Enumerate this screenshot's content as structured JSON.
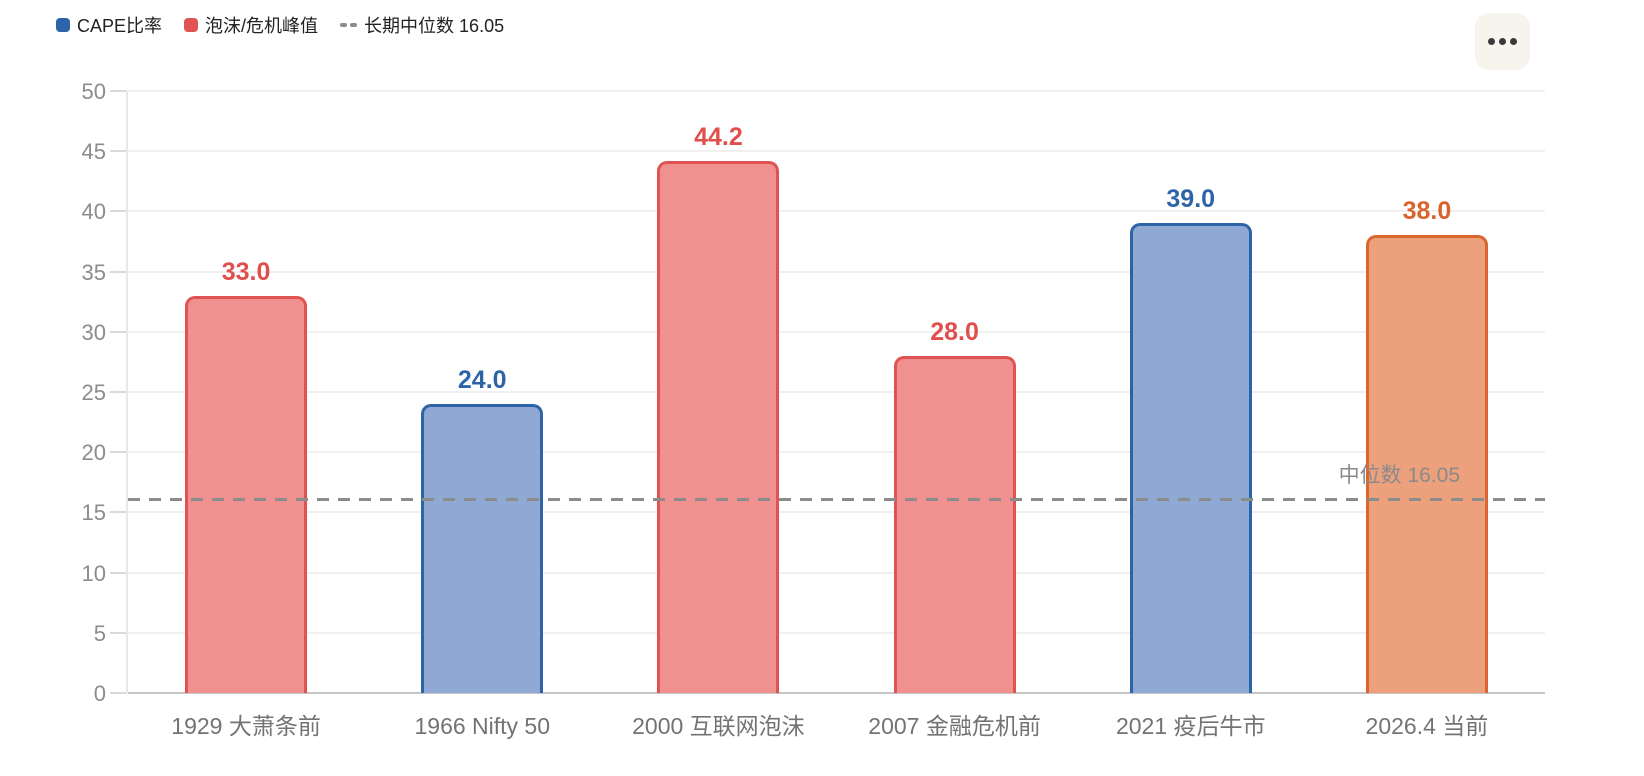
{
  "legend": {
    "items": [
      {
        "label": "CAPE比率",
        "swatch": "square",
        "color": "#2d64a7"
      },
      {
        "label": "泡沫/危机峰值",
        "swatch": "square",
        "color": "#e05353"
      },
      {
        "label": "长期中位数 16.05",
        "swatch": "dashed-line",
        "color": "#8c8c8c"
      }
    ]
  },
  "more_button": {
    "icon": "ellipsis-icon"
  },
  "chart_data": {
    "type": "bar",
    "categories": [
      "1929 大萧条前",
      "1966 Nifty 50",
      "2000 互联网泡沫",
      "2007 金融危机前",
      "2021 疫后牛市",
      "2026.4 当前"
    ],
    "values": [
      33.0,
      24.0,
      44.2,
      28.0,
      39.0,
      38.0
    ],
    "value_labels": [
      "33.0",
      "24.0",
      "44.2",
      "28.0",
      "39.0",
      "38.0"
    ],
    "bar_series": [
      "泡沫/危机峰值",
      "CAPE比率",
      "泡沫/危机峰值",
      "泡沫/危机峰值",
      "CAPE比率",
      "2026.4 当前"
    ],
    "bar_style_keys": [
      "bubble",
      "cape",
      "bubble",
      "bubble",
      "cape",
      "current"
    ],
    "styles": {
      "cape": {
        "border": "#2d64a7",
        "fill": "#8fa9d4",
        "text": "#2d64a7"
      },
      "bubble": {
        "border": "#e05353",
        "fill": "#f0918f",
        "text": "#e04f4c"
      },
      "current": {
        "border": "#d9662f",
        "fill": "#eda07c",
        "text": "#d8632c"
      }
    },
    "title": "",
    "xlabel": "",
    "ylabel": "",
    "ylim": [
      0,
      50
    ],
    "yticks": [
      0,
      5,
      10,
      15,
      20,
      25,
      30,
      35,
      40,
      45,
      50
    ],
    "grid": true,
    "legend_position": "top-left",
    "median_line": {
      "value": 16.05,
      "label": "中位数 16.05"
    }
  }
}
